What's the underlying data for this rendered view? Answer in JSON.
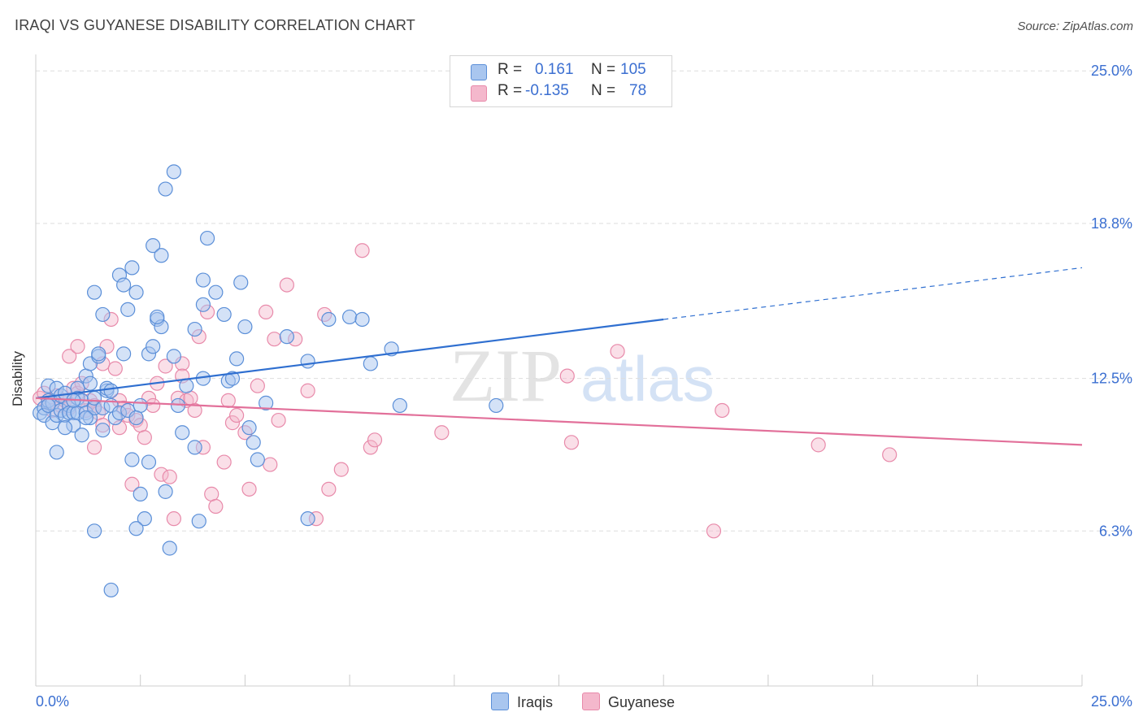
{
  "title": "IRAQI VS GUYANESE DISABILITY CORRELATION CHART",
  "source": "Source: ZipAtlas.com",
  "watermark": {
    "zip": "ZIP",
    "atlas": "atlas"
  },
  "colors": {
    "iraqis_fill": "#a9c6ef",
    "iraqis_stroke": "#5b8fd8",
    "iraqis_line": "#2f6fd0",
    "guyanese_fill": "#f4b8cc",
    "guyanese_stroke": "#e88aaa",
    "guyanese_line": "#e2709a",
    "tick_label": "#3b6fd1",
    "grid": "#dddddd"
  },
  "legend": {
    "rows": [
      {
        "r_label": "R =",
        "r_value": "0.161",
        "n_label": "N =",
        "n_value": "105"
      },
      {
        "r_label": "R =",
        "r_value": "-0.135",
        "n_label": "N =",
        "n_value": "78"
      }
    ]
  },
  "bottom_legend": {
    "iraqis": "Iraqis",
    "guyanese": "Guyanese"
  },
  "chart_data": {
    "type": "scatter",
    "xlabel": "",
    "ylabel": "Disability",
    "xlim": [
      0,
      25
    ],
    "ylim": [
      0,
      25.9
    ],
    "x_tick_labels": [
      "0.0%",
      "25.0%"
    ],
    "y_ticks": [
      6.3,
      12.5,
      18.8,
      25.0
    ],
    "y_tick_labels": [
      "6.3%",
      "12.5%",
      "18.8%",
      "25.0%"
    ],
    "grid": "horizontal dashed",
    "legend_position": "top-center",
    "series": [
      {
        "name": "Iraqis",
        "r": 0.161,
        "n": 105,
        "trend": {
          "x0": 0,
          "y0": 11.7,
          "x1": 15,
          "y1": 14.9,
          "dash_to_x": 25,
          "dash_to_y": 17.0
        },
        "points": [
          [
            0.1,
            11.1
          ],
          [
            0.2,
            11.3
          ],
          [
            0.2,
            11.0
          ],
          [
            0.3,
            12.2
          ],
          [
            0.3,
            11.6
          ],
          [
            0.4,
            10.7
          ],
          [
            0.4,
            11.5
          ],
          [
            0.5,
            12.1
          ],
          [
            0.5,
            11.0
          ],
          [
            0.6,
            11.8
          ],
          [
            0.6,
            11.2
          ],
          [
            0.7,
            11.9
          ],
          [
            0.7,
            11.0
          ],
          [
            0.8,
            11.4
          ],
          [
            0.8,
            11.1
          ],
          [
            0.9,
            11.1
          ],
          [
            0.9,
            10.6
          ],
          [
            1.0,
            12.1
          ],
          [
            1.0,
            11.7
          ],
          [
            1.0,
            11.1
          ],
          [
            1.1,
            11.6
          ],
          [
            1.1,
            10.2
          ],
          [
            1.2,
            12.6
          ],
          [
            1.2,
            11.1
          ],
          [
            1.3,
            13.1
          ],
          [
            1.3,
            12.3
          ],
          [
            1.3,
            10.9
          ],
          [
            1.4,
            11.3
          ],
          [
            1.4,
            11.7
          ],
          [
            1.5,
            13.4
          ],
          [
            1.5,
            13.5
          ],
          [
            1.6,
            10.4
          ],
          [
            1.6,
            11.3
          ],
          [
            1.7,
            12.0
          ],
          [
            1.7,
            12.1
          ],
          [
            1.8,
            12.0
          ],
          [
            1.8,
            11.4
          ],
          [
            1.9,
            10.9
          ],
          [
            2.0,
            11.1
          ],
          [
            2.1,
            13.5
          ],
          [
            2.2,
            11.2
          ],
          [
            2.0,
            16.7
          ],
          [
            2.1,
            16.3
          ],
          [
            1.4,
            16.0
          ],
          [
            1.6,
            15.1
          ],
          [
            2.2,
            15.3
          ],
          [
            2.4,
            16.0
          ],
          [
            2.3,
            17.0
          ],
          [
            2.5,
            11.4
          ],
          [
            2.4,
            10.9
          ],
          [
            2.3,
            9.2
          ],
          [
            2.5,
            7.8
          ],
          [
            2.6,
            6.8
          ],
          [
            2.4,
            6.4
          ],
          [
            2.7,
            9.1
          ],
          [
            2.7,
            13.5
          ],
          [
            2.8,
            13.8
          ],
          [
            2.9,
            14.9
          ],
          [
            2.8,
            17.9
          ],
          [
            3.0,
            17.5
          ],
          [
            3.0,
            14.6
          ],
          [
            2.9,
            15.0
          ],
          [
            3.1,
            20.2
          ],
          [
            3.3,
            20.9
          ],
          [
            3.1,
            7.9
          ],
          [
            3.2,
            5.6
          ],
          [
            3.3,
            13.4
          ],
          [
            3.4,
            11.4
          ],
          [
            3.5,
            10.3
          ],
          [
            3.6,
            12.2
          ],
          [
            3.8,
            14.5
          ],
          [
            3.8,
            9.7
          ],
          [
            3.9,
            6.7
          ],
          [
            4.0,
            15.5
          ],
          [
            4.0,
            16.5
          ],
          [
            4.0,
            12.5
          ],
          [
            4.1,
            18.2
          ],
          [
            4.3,
            16.0
          ],
          [
            4.5,
            15.1
          ],
          [
            4.6,
            12.4
          ],
          [
            4.7,
            12.5
          ],
          [
            4.8,
            13.3
          ],
          [
            4.9,
            16.4
          ],
          [
            5.0,
            14.6
          ],
          [
            5.1,
            10.5
          ],
          [
            5.2,
            9.9
          ],
          [
            5.3,
            9.2
          ],
          [
            5.5,
            11.5
          ],
          [
            6.0,
            14.2
          ],
          [
            6.5,
            13.2
          ],
          [
            6.5,
            6.8
          ],
          [
            7.0,
            14.9
          ],
          [
            7.5,
            15.0
          ],
          [
            7.8,
            14.9
          ],
          [
            8.0,
            13.1
          ],
          [
            8.5,
            13.7
          ],
          [
            8.7,
            11.4
          ],
          [
            11.0,
            11.4
          ],
          [
            1.8,
            3.9
          ],
          [
            1.4,
            6.3
          ],
          [
            0.5,
            9.5
          ],
          [
            0.7,
            10.5
          ],
          [
            1.2,
            10.9
          ],
          [
            0.3,
            11.4
          ],
          [
            0.9,
            11.6
          ]
        ]
      },
      {
        "name": "Guyanese",
        "r": -0.135,
        "n": 78,
        "trend": {
          "x0": 0,
          "y0": 11.7,
          "x1": 25,
          "y1": 9.8
        },
        "points": [
          [
            0.1,
            11.7
          ],
          [
            0.2,
            11.9
          ],
          [
            0.3,
            11.5
          ],
          [
            0.4,
            11.2
          ],
          [
            0.5,
            11.8
          ],
          [
            0.6,
            11.4
          ],
          [
            0.7,
            11.6
          ],
          [
            0.8,
            11.3
          ],
          [
            0.8,
            13.4
          ],
          [
            0.9,
            12.1
          ],
          [
            1.0,
            11.9
          ],
          [
            1.0,
            13.8
          ],
          [
            1.1,
            12.3
          ],
          [
            1.2,
            11.2
          ],
          [
            1.3,
            11.6
          ],
          [
            1.4,
            11.4
          ],
          [
            1.4,
            9.7
          ],
          [
            1.5,
            11.1
          ],
          [
            1.6,
            10.6
          ],
          [
            1.6,
            13.1
          ],
          [
            1.7,
            13.8
          ],
          [
            1.8,
            14.9
          ],
          [
            1.9,
            12.9
          ],
          [
            2.0,
            11.6
          ],
          [
            2.0,
            10.5
          ],
          [
            2.1,
            11.3
          ],
          [
            2.2,
            11.0
          ],
          [
            2.3,
            8.2
          ],
          [
            2.4,
            10.8
          ],
          [
            2.5,
            10.6
          ],
          [
            2.6,
            10.1
          ],
          [
            2.7,
            11.7
          ],
          [
            2.8,
            11.4
          ],
          [
            2.9,
            12.3
          ],
          [
            3.0,
            8.6
          ],
          [
            3.1,
            13.0
          ],
          [
            3.2,
            8.5
          ],
          [
            3.3,
            6.8
          ],
          [
            3.4,
            11.7
          ],
          [
            3.5,
            13.1
          ],
          [
            3.5,
            12.6
          ],
          [
            3.6,
            11.6
          ],
          [
            3.7,
            11.7
          ],
          [
            3.8,
            11.2
          ],
          [
            3.9,
            14.2
          ],
          [
            4.0,
            9.7
          ],
          [
            4.1,
            15.2
          ],
          [
            4.2,
            7.8
          ],
          [
            4.3,
            7.3
          ],
          [
            4.5,
            9.1
          ],
          [
            4.6,
            11.6
          ],
          [
            4.7,
            10.7
          ],
          [
            4.8,
            11.0
          ],
          [
            5.0,
            10.3
          ],
          [
            5.1,
            8.0
          ],
          [
            5.3,
            12.2
          ],
          [
            5.5,
            15.2
          ],
          [
            5.6,
            9.0
          ],
          [
            5.7,
            14.1
          ],
          [
            5.8,
            10.8
          ],
          [
            6.0,
            16.3
          ],
          [
            6.2,
            14.1
          ],
          [
            6.5,
            12.0
          ],
          [
            6.7,
            6.8
          ],
          [
            6.9,
            15.1
          ],
          [
            7.0,
            8.0
          ],
          [
            7.3,
            8.8
          ],
          [
            7.8,
            17.7
          ],
          [
            8.0,
            9.7
          ],
          [
            8.1,
            10.0
          ],
          [
            9.7,
            10.3
          ],
          [
            12.7,
            12.6
          ],
          [
            12.8,
            9.9
          ],
          [
            13.9,
            13.6
          ],
          [
            16.2,
            6.3
          ],
          [
            16.4,
            11.2
          ],
          [
            18.7,
            9.8
          ],
          [
            20.4,
            9.4
          ]
        ]
      }
    ]
  }
}
